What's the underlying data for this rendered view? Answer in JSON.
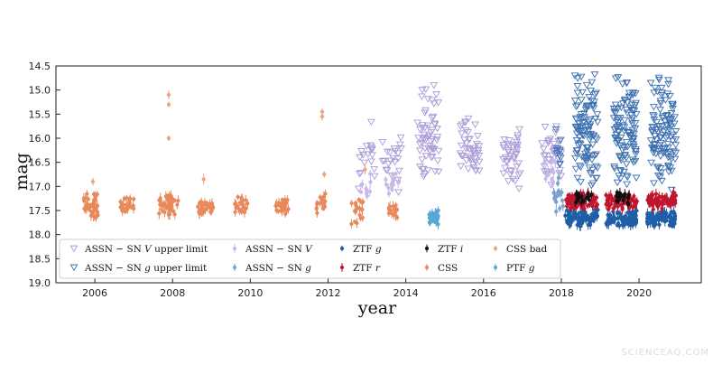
{
  "chart_data": {
    "type": "scatter",
    "xlabel": "year",
    "ylabel": "mag",
    "xlim": [
      2005.0,
      2021.6
    ],
    "ylim": [
      19.0,
      14.5
    ],
    "y_inverted": true,
    "x_ticks": [
      "2006",
      "2008",
      "2010",
      "2012",
      "2014",
      "2016",
      "2018",
      "2020"
    ],
    "y_ticks": [
      "14.5",
      "15.0",
      "15.5",
      "16.0",
      "16.5",
      "17.0",
      "17.5",
      "18.0",
      "18.5",
      "19.0"
    ],
    "grid": false,
    "legend_position": "lower-left",
    "series": [
      {
        "name": "ASSN − SN V upper limit",
        "label_prefix": "ASSN − SN",
        "label_italic": "V",
        "label_suffix": "upper limit",
        "marker": "triangle-down-open",
        "color": "#a99ad8",
        "clusters": [
          {
            "x_range": [
              2012.7,
              2013.2
            ],
            "y_range": [
              15.3,
              17.5
            ],
            "n": 18
          },
          {
            "x_range": [
              2013.4,
              2013.9
            ],
            "y_range": [
              15.6,
              17.3
            ],
            "n": 22
          },
          {
            "x_range": [
              2014.3,
              2014.85
            ],
            "y_range": [
              14.7,
              17.2
            ],
            "n": 60
          },
          {
            "x_range": [
              2015.4,
              2015.9
            ],
            "y_range": [
              15.5,
              17.0
            ],
            "n": 45
          },
          {
            "x_range": [
              2016.5,
              2016.95
            ],
            "y_range": [
              15.7,
              17.1
            ],
            "n": 40
          },
          {
            "x_range": [
              2017.5,
              2018.0
            ],
            "y_range": [
              15.5,
              17.0
            ],
            "n": 35
          }
        ]
      },
      {
        "name": "ASSN − SN g upper limit",
        "label_prefix": "ASSN − SN",
        "label_italic": "g",
        "label_suffix": "upper limit",
        "marker": "triangle-down-open",
        "color": "#3b6fb0",
        "clusters": [
          {
            "x_range": [
              2017.85,
              2018.0
            ],
            "y_range": [
              15.7,
              16.8
            ],
            "n": 10
          },
          {
            "x_range": [
              2018.35,
              2018.95
            ],
            "y_range": [
              14.6,
              17.2
            ],
            "n": 110
          },
          {
            "x_range": [
              2019.35,
              2019.95
            ],
            "y_range": [
              14.6,
              17.2
            ],
            "n": 110
          },
          {
            "x_range": [
              2020.3,
              2020.95
            ],
            "y_range": [
              14.6,
              17.2
            ],
            "n": 110
          }
        ]
      },
      {
        "name": "ASSN − SN V",
        "label_prefix": "ASSN − SN",
        "label_italic": "V",
        "label_suffix": "",
        "marker": "point-errorbar",
        "color": "#c7b8e6",
        "clusters": [
          {
            "x_range": [
              2012.75,
              2013.1
            ],
            "y_range": [
              16.6,
              17.4
            ],
            "n": 10
          },
          {
            "x_range": [
              2013.45,
              2013.85
            ],
            "y_range": [
              16.6,
              17.3
            ],
            "n": 14
          },
          {
            "x_range": [
              2017.55,
              2017.95
            ],
            "y_range": [
              16.3,
              17.0
            ],
            "n": 14
          }
        ]
      },
      {
        "name": "ASSN − SN g",
        "label_prefix": "ASSN − SN",
        "label_italic": "g",
        "label_suffix": "",
        "marker": "point-errorbar",
        "color": "#7aa2cf",
        "clusters": [
          {
            "x_range": [
              2017.8,
              2018.05
            ],
            "y_range": [
              16.8,
              17.6
            ],
            "n": 18
          }
        ]
      },
      {
        "name": "ZTF g",
        "label_prefix": "ZTF",
        "label_italic": "g",
        "label_suffix": "",
        "marker": "point-errorbar",
        "color": "#1f5fa8",
        "clusters": [
          {
            "x_range": [
              2018.1,
              2018.95
            ],
            "y_range": [
              17.45,
              17.85
            ],
            "n": 85
          },
          {
            "x_range": [
              2019.15,
              2019.95
            ],
            "y_range": [
              17.45,
              17.85
            ],
            "n": 85
          },
          {
            "x_range": [
              2020.2,
              2020.95
            ],
            "y_range": [
              17.45,
              17.85
            ],
            "n": 85
          }
        ]
      },
      {
        "name": "ZTF r",
        "label_prefix": "ZTF",
        "label_italic": "r",
        "label_suffix": "",
        "marker": "point-errorbar",
        "color": "#c0152f",
        "clusters": [
          {
            "x_range": [
              2018.1,
              2018.95
            ],
            "y_range": [
              17.1,
              17.5
            ],
            "n": 70
          },
          {
            "x_range": [
              2019.15,
              2019.95
            ],
            "y_range": [
              17.1,
              17.5
            ],
            "n": 70
          },
          {
            "x_range": [
              2020.2,
              2020.95
            ],
            "y_range": [
              17.1,
              17.5
            ],
            "n": 70
          }
        ]
      },
      {
        "name": "ZTF i",
        "label_prefix": "ZTF",
        "label_italic": "i",
        "label_suffix": "",
        "marker": "point-errorbar",
        "color": "#111111",
        "clusters": [
          {
            "x_range": [
              2018.35,
              2018.8
            ],
            "y_range": [
              17.1,
              17.4
            ],
            "n": 18
          },
          {
            "x_range": [
              2019.4,
              2019.75
            ],
            "y_range": [
              17.1,
              17.4
            ],
            "n": 16
          }
        ]
      },
      {
        "name": "CSS bad",
        "label_prefix": "CSS bad",
        "label_italic": "",
        "label_suffix": "",
        "marker": "point-errorbar",
        "color": "#f0a07a",
        "points": [
          [
            2007.9,
            15.1
          ],
          [
            2007.9,
            15.3
          ],
          [
            2007.9,
            16.0
          ],
          [
            2011.85,
            15.45
          ],
          [
            2011.85,
            15.55
          ],
          [
            2011.9,
            16.75
          ],
          [
            2008.8,
            16.85
          ],
          [
            2005.95,
            16.9
          ],
          [
            2012.95,
            16.65
          ]
        ]
      },
      {
        "name": "CSS",
        "label_prefix": "CSS",
        "label_italic": "",
        "label_suffix": "",
        "marker": "point-errorbar",
        "color": "#e8895c",
        "clusters": [
          {
            "x_range": [
              2005.7,
              2006.1
            ],
            "y_range": [
              17.1,
              17.7
            ],
            "n": 40
          },
          {
            "x_range": [
              2006.65,
              2007.0
            ],
            "y_range": [
              17.2,
              17.6
            ],
            "n": 25
          },
          {
            "x_range": [
              2007.65,
              2008.15
            ],
            "y_range": [
              17.1,
              17.7
            ],
            "n": 40
          },
          {
            "x_range": [
              2008.65,
              2009.05
            ],
            "y_range": [
              17.2,
              17.7
            ],
            "n": 30
          },
          {
            "x_range": [
              2009.55,
              2009.95
            ],
            "y_range": [
              17.2,
              17.6
            ],
            "n": 25
          },
          {
            "x_range": [
              2010.65,
              2011.0
            ],
            "y_range": [
              17.2,
              17.6
            ],
            "n": 25
          },
          {
            "x_range": [
              2011.7,
              2011.95
            ],
            "y_range": [
              17.1,
              17.6
            ],
            "n": 18
          },
          {
            "x_range": [
              2012.6,
              2012.9
            ],
            "y_range": [
              17.2,
              17.8
            ],
            "n": 20
          },
          {
            "x_range": [
              2013.55,
              2013.9
            ],
            "y_range": [
              17.3,
              17.7
            ],
            "n": 14
          }
        ]
      },
      {
        "name": "PTF g",
        "label_prefix": "PTF",
        "label_italic": "g",
        "label_suffix": "",
        "marker": "point-errorbar",
        "color": "#5aa6d6",
        "clusters": [
          {
            "x_range": [
              2014.6,
              2014.85
            ],
            "y_range": [
              17.45,
              17.85
            ],
            "n": 30
          }
        ]
      }
    ]
  },
  "watermark": "SCIENCEAQ.COM"
}
